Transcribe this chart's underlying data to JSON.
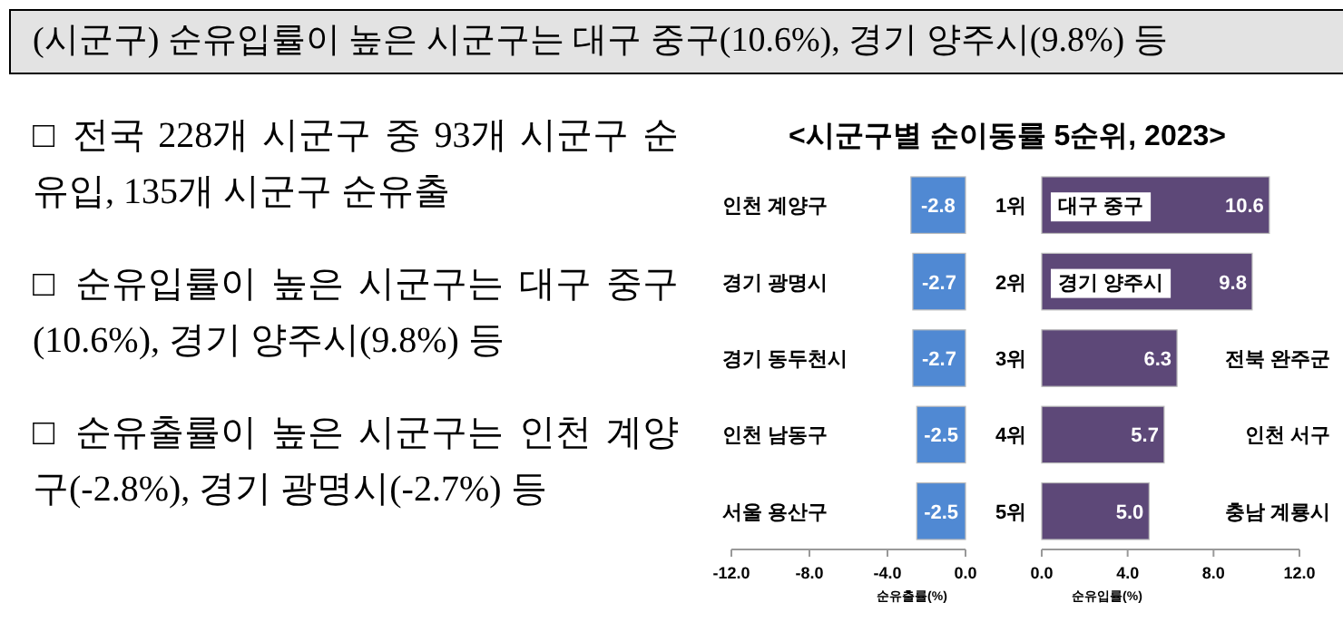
{
  "chart_data": [
    {
      "type": "other",
      "title": "(시군구) 순유입률이 높은 시군구는 대구 중구(10.6%), 경기 양주시(9.8%) 등",
      "annotations": [
        "□ 전국 228개 시군구 중 93개 시군구 순유입, 135개 시군구 순유출",
        "□ 순유입률이 높은 시군구는 대구 중구(10.6%), 경기 양주시(9.8%) 등",
        "□ 순유출률이 높은 시군구는 인천 계양구(-2.8%), 경기 광명시(-2.7%) 등"
      ]
    },
    {
      "type": "bar",
      "orientation": "horizontal",
      "title": "<시군구별 순이동률 5순위, 2023>",
      "categories": [
        "인천 계양구",
        "경기 광명시",
        "경기 동두천시",
        "인천 남동구",
        "서울 용산구"
      ],
      "values": [
        -2.8,
        -2.7,
        -2.7,
        -2.5,
        -2.5
      ],
      "color": "#5089d3",
      "data_labels": true,
      "xlim": [
        -12,
        0
      ],
      "xticks": [
        {
          "value": -12,
          "label": "-12.0"
        },
        {
          "value": -8,
          "label": "-8.0"
        },
        {
          "value": -4,
          "label": "-4.0"
        },
        {
          "value": 0,
          "label": "0.0"
        }
      ],
      "xlabel": "순유출률(%)"
    },
    {
      "type": "bar",
      "orientation": "horizontal",
      "categories": [
        "1위",
        "2위",
        "3위",
        "4위",
        "5위"
      ],
      "values": [
        10.6,
        9.8,
        6.3,
        5.7,
        5.0
      ],
      "value_labels": [
        "10.6",
        "9.8",
        "6.3",
        "5.7",
        "5.0"
      ],
      "color": "#5d4878",
      "xlim": [
        0,
        12
      ],
      "xticks": [
        {
          "value": 0,
          "label": "0.0"
        },
        {
          "value": 4,
          "label": "4.0"
        },
        {
          "value": 8,
          "label": "8.0"
        },
        {
          "value": 12,
          "label": "12.0"
        }
      ],
      "xlabel": "순유입률(%)",
      "annotations": [
        "대구 중구",
        "경기 양주시",
        "전북 완주군",
        "인천 서구",
        "충남 계룡시"
      ]
    }
  ]
}
